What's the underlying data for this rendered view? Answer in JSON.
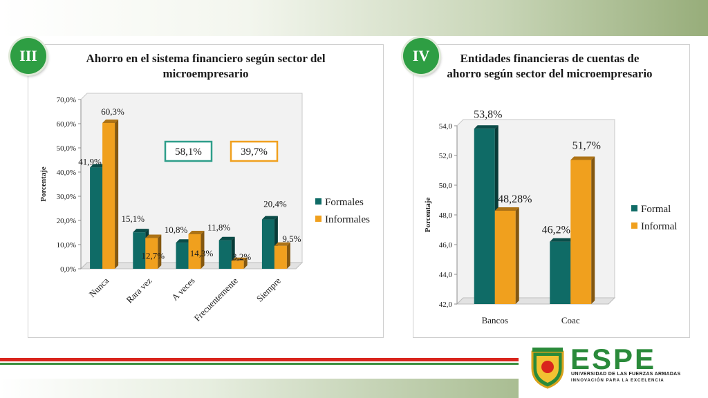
{
  "colors": {
    "formal": "#0f6b66",
    "informal": "#f0a01e",
    "badge": "#2e9e43",
    "box_formal": "#2e9e8a",
    "box_informal": "#f0a01e"
  },
  "badges": {
    "left": "III",
    "right": "IV"
  },
  "titles": {
    "left": "Ahorro en el sistema financiero según sector del microempresario",
    "right": "Entidades financieras de cuentas de ahorro según sector del microempresario"
  },
  "boxes": {
    "formal": "58,1%",
    "informal": "39,7%"
  },
  "logo": {
    "name": "ESPE",
    "sub1": "UNIVERSIDAD DE LAS FUERZAS ARMADAS",
    "sub2": "INNOVACIÓN PARA LA EXCELENCIA"
  },
  "chart_data": [
    {
      "type": "bar",
      "title": "Ahorro en el sistema financiero según sector del microempresario",
      "ylabel": "Porcentaje",
      "ylim": [
        0,
        70
      ],
      "ytick_labels": [
        "0,0%",
        "10,0%",
        "20,0%",
        "30,0%",
        "40,0%",
        "50,0%",
        "60,0%",
        "70,0%"
      ],
      "categories": [
        "Nunca",
        "Rara vez",
        "A veces",
        "Frecuentemente",
        "Siempre"
      ],
      "series": [
        {
          "name": "Formales",
          "values": [
            41.9,
            15.1,
            10.8,
            11.8,
            20.4
          ],
          "labels": [
            "41,9%",
            "15,1%",
            "10,8%",
            "11,8%",
            "20,4%"
          ]
        },
        {
          "name": "Informales",
          "values": [
            60.3,
            12.7,
            14.3,
            3.2,
            9.5
          ],
          "labels": [
            "60,3%",
            "12,7%",
            "14,3%",
            "3,2%",
            "9,5%"
          ]
        }
      ],
      "legend": "right",
      "grid": false
    },
    {
      "type": "bar",
      "title": "Entidades financieras de cuentas de ahorro según sector del microempresario",
      "ylabel": "Porcentaje",
      "ylim": [
        42,
        54
      ],
      "ytick_labels": [
        "42,0",
        "44,0",
        "46,0",
        "48,0",
        "50,0",
        "52,0",
        "54,0"
      ],
      "categories": [
        "Bancos",
        "Coac"
      ],
      "series": [
        {
          "name": "Formal",
          "values": [
            53.8,
            46.2
          ],
          "labels": [
            "53,8%",
            "46,2%"
          ]
        },
        {
          "name": "Informal",
          "values": [
            48.28,
            51.7
          ],
          "labels": [
            "48,28%",
            "51,7%"
          ]
        }
      ],
      "legend": "right",
      "grid": false
    }
  ]
}
